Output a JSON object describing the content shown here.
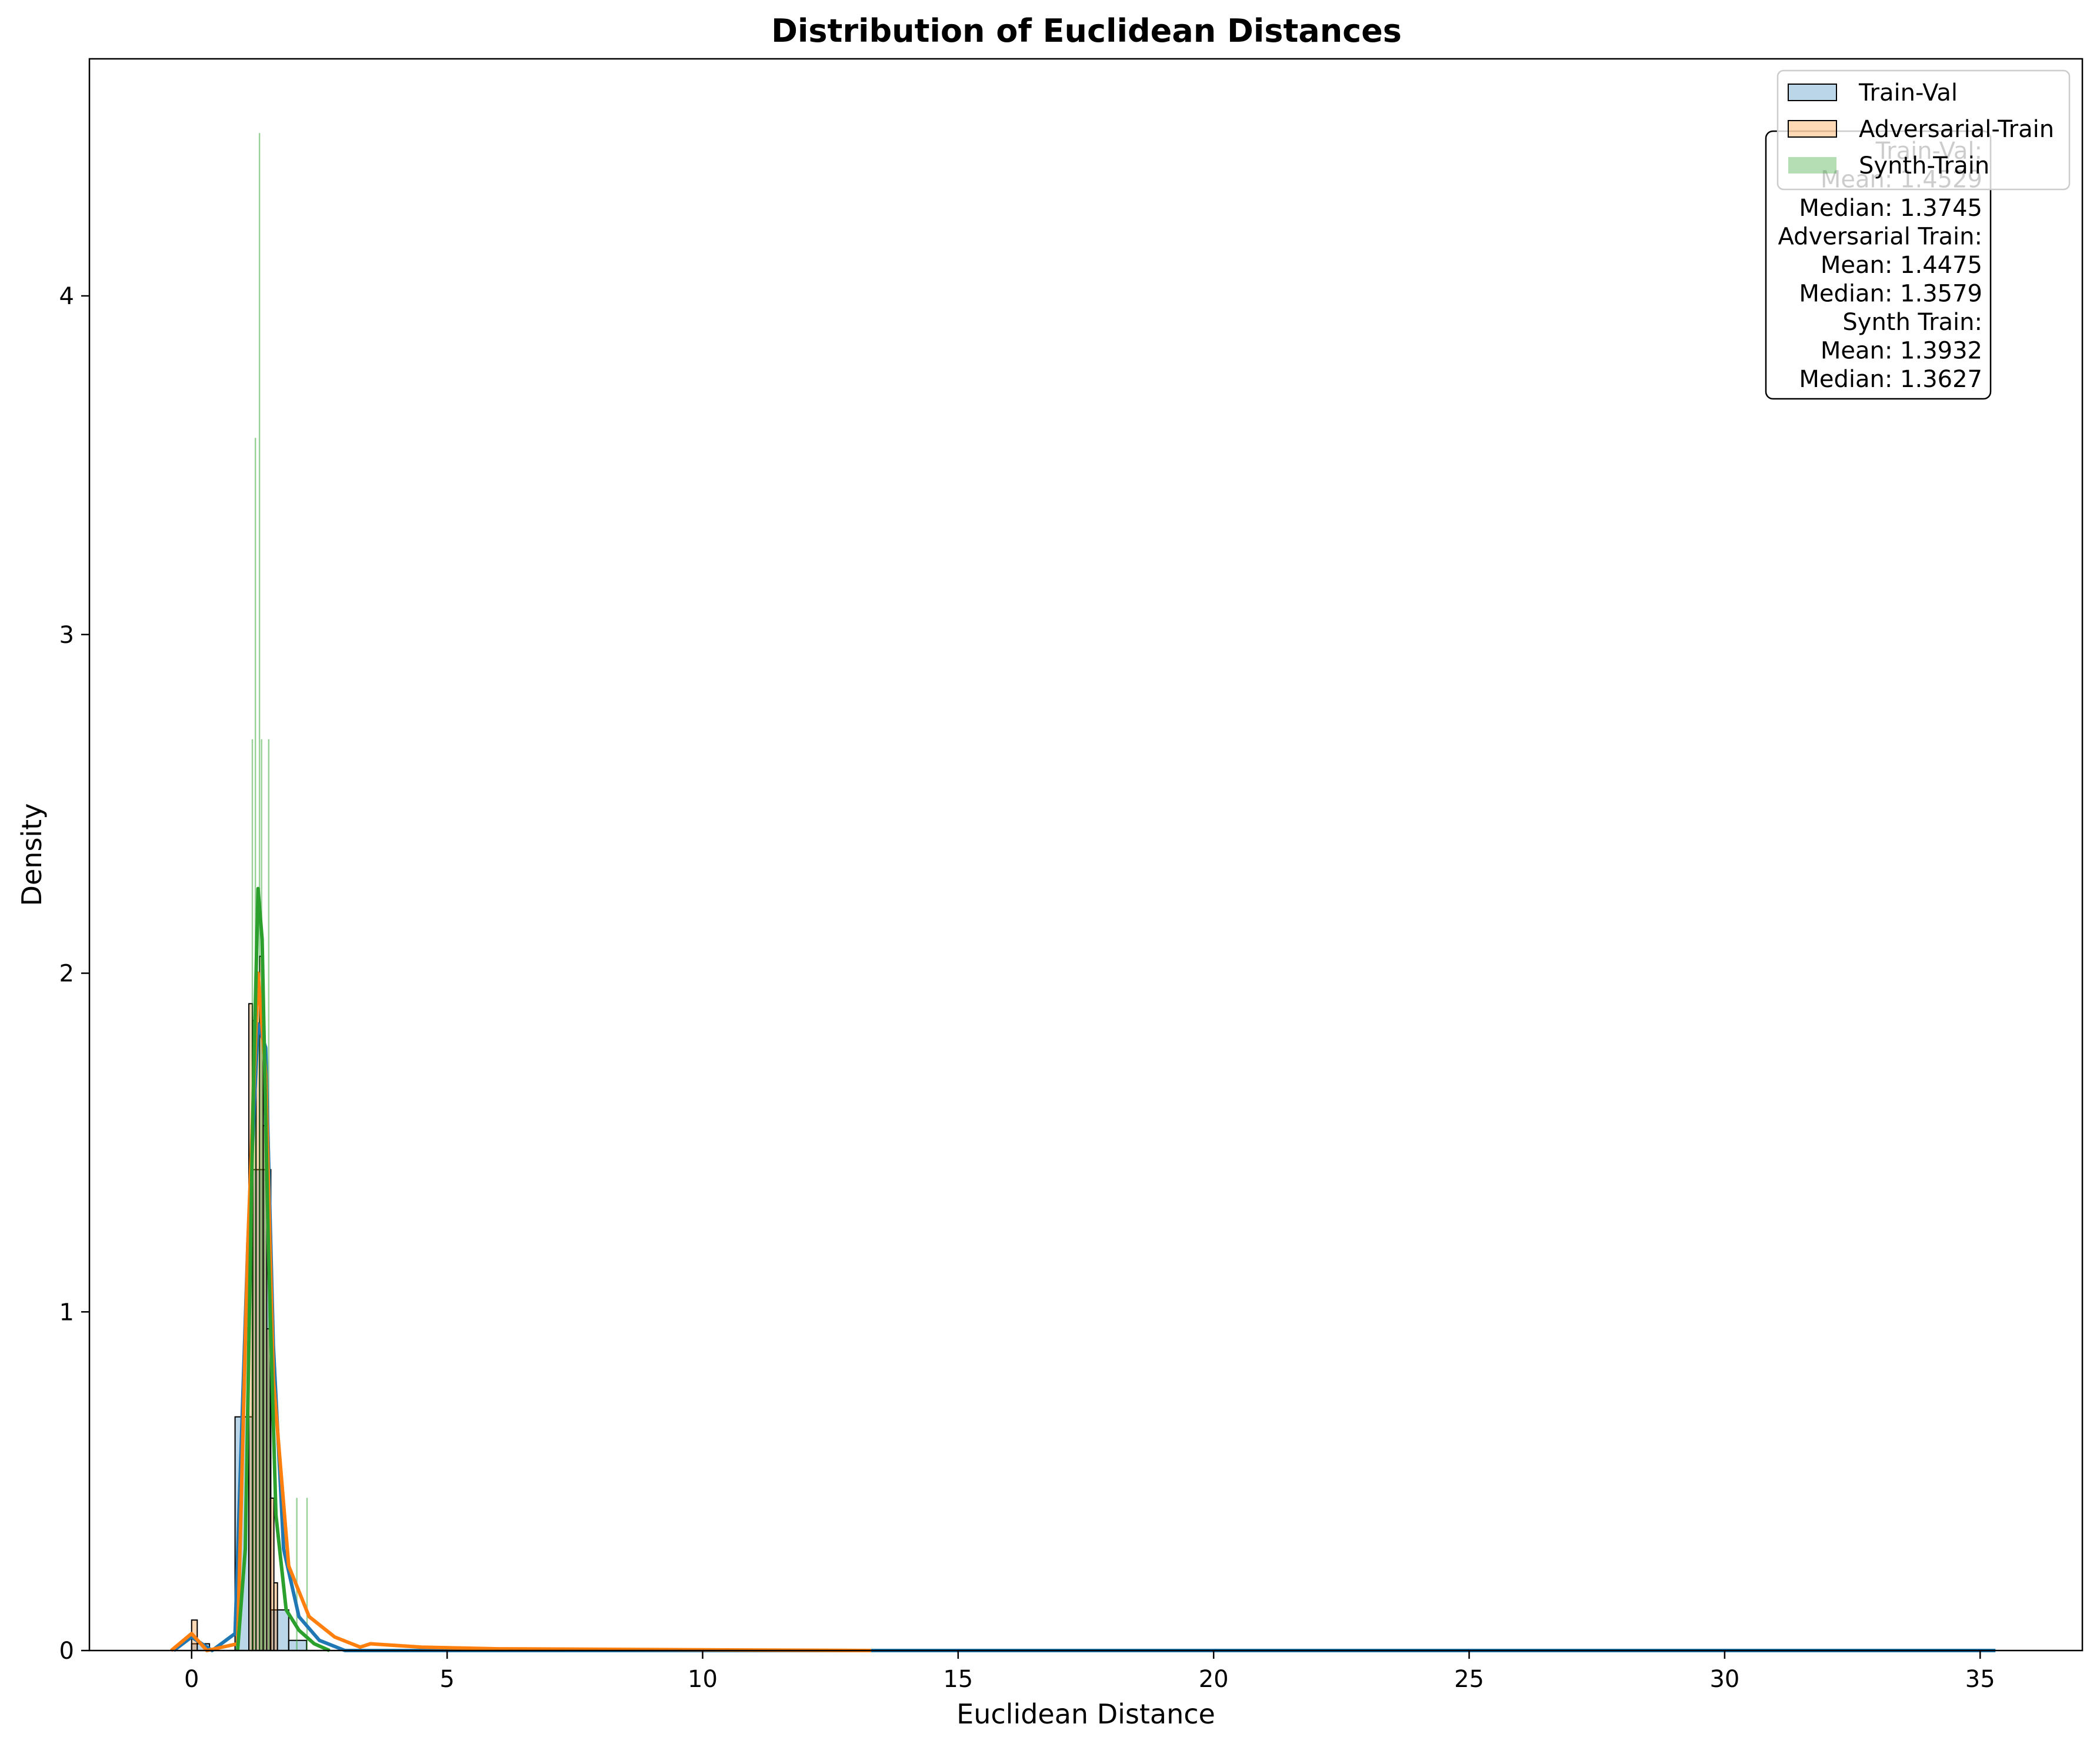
{
  "chart_data": {
    "type": "histogram",
    "title": "Distribution of Euclidean Distances",
    "xlabel": "Euclidean Distance",
    "ylabel": "Density",
    "xlim": [
      -2.0,
      37.0
    ],
    "ylim": [
      0,
      4.7
    ],
    "xticks": [
      0,
      5,
      10,
      15,
      20,
      25,
      30,
      35
    ],
    "yticks": [
      0,
      1,
      2,
      3,
      4
    ],
    "grid": false,
    "legend": {
      "position": "upper right",
      "entries": [
        {
          "label": "Train-Val",
          "color": "#1f77b4"
        },
        {
          "label": "Adversarial-Train",
          "color": "#ff7f0e"
        },
        {
          "label": "Synth-Train",
          "color": "#2ca02c"
        }
      ]
    },
    "stats_box": [
      "Train-Val:",
      "Mean: 1.4529",
      "Median: 1.3745",
      "Adversarial Train:",
      "Mean: 1.4475",
      "Median: 1.3579",
      "Synth Train:",
      "Mean: 1.3932",
      "Median: 1.3627"
    ],
    "series": [
      {
        "name": "Train-Val",
        "color": "#1f77b4",
        "bins": [
          {
            "x0": 0.0,
            "x1": 0.35,
            "density": 0.02
          },
          {
            "x0": 0.35,
            "x1": 0.85,
            "density": 0.0
          },
          {
            "x0": 0.85,
            "x1": 1.2,
            "density": 0.69
          },
          {
            "x0": 1.2,
            "x1": 1.55,
            "density": 1.42
          },
          {
            "x0": 1.55,
            "x1": 1.9,
            "density": 0.12
          },
          {
            "x0": 1.9,
            "x1": 2.25,
            "density": 0.03
          }
        ],
        "kde": [
          [
            -0.35,
            0
          ],
          [
            0,
            0.04
          ],
          [
            0.4,
            0.0
          ],
          [
            0.85,
            0.05
          ],
          [
            1.1,
            1.2
          ],
          [
            1.3,
            1.85
          ],
          [
            1.45,
            1.78
          ],
          [
            1.6,
            0.9
          ],
          [
            1.8,
            0.3
          ],
          [
            2.1,
            0.1
          ],
          [
            2.5,
            0.03
          ],
          [
            3.0,
            0.0
          ],
          [
            35.3,
            0.0
          ]
        ]
      },
      {
        "name": "Adversarial-Train",
        "color": "#ff7f0e",
        "bins": [
          {
            "x0": 0.0,
            "x1": 0.11,
            "density": 0.09
          },
          {
            "x0": 1.12,
            "x1": 1.19,
            "density": 1.91
          },
          {
            "x0": 1.19,
            "x1": 1.26,
            "density": 1.86
          },
          {
            "x0": 1.26,
            "x1": 1.33,
            "density": 1.95
          },
          {
            "x0": 1.33,
            "x1": 1.4,
            "density": 2.05
          },
          {
            "x0": 1.4,
            "x1": 1.47,
            "density": 1.55
          },
          {
            "x0": 1.47,
            "x1": 1.54,
            "density": 0.95
          },
          {
            "x0": 1.54,
            "x1": 1.61,
            "density": 0.45
          },
          {
            "x0": 1.61,
            "x1": 1.68,
            "density": 0.2
          }
        ],
        "kde": [
          [
            -0.4,
            0
          ],
          [
            0,
            0.05
          ],
          [
            0.3,
            0.0
          ],
          [
            0.9,
            0.02
          ],
          [
            1.1,
            1.2
          ],
          [
            1.3,
            2.0
          ],
          [
            1.45,
            1.7
          ],
          [
            1.6,
            0.8
          ],
          [
            1.9,
            0.25
          ],
          [
            2.3,
            0.1
          ],
          [
            2.8,
            0.04
          ],
          [
            3.3,
            0.01
          ],
          [
            3.5,
            0.02
          ],
          [
            4.5,
            0.01
          ],
          [
            6.0,
            0.005
          ],
          [
            10.0,
            0.002
          ],
          [
            13.3,
            0.0
          ]
        ]
      },
      {
        "name": "Synth-Train",
        "color": "#2ca02c",
        "bins": [
          {
            "x0": 1.18,
            "x1": 1.19,
            "density": 2.69
          },
          {
            "x0": 1.24,
            "x1": 1.25,
            "density": 3.58
          },
          {
            "x0": 1.32,
            "x1": 1.33,
            "density": 4.48
          },
          {
            "x0": 1.36,
            "x1": 1.37,
            "density": 2.69
          },
          {
            "x0": 1.42,
            "x1": 1.43,
            "density": 1.79
          },
          {
            "x0": 1.5,
            "x1": 1.51,
            "density": 2.69
          },
          {
            "x0": 2.05,
            "x1": 2.06,
            "density": 0.45
          },
          {
            "x0": 2.25,
            "x1": 2.26,
            "density": 0.45
          }
        ],
        "kde": [
          [
            0.9,
            0
          ],
          [
            1.05,
            0.3
          ],
          [
            1.2,
            1.6
          ],
          [
            1.3,
            2.25
          ],
          [
            1.38,
            2.1
          ],
          [
            1.5,
            1.2
          ],
          [
            1.65,
            0.4
          ],
          [
            1.85,
            0.12
          ],
          [
            2.1,
            0.06
          ],
          [
            2.4,
            0.02
          ],
          [
            2.7,
            0.0
          ]
        ]
      }
    ]
  }
}
